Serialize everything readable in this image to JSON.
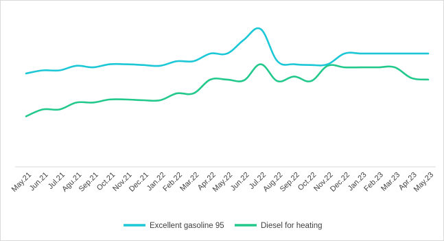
{
  "chart_data": {
    "type": "line",
    "title": "",
    "xlabel": "",
    "ylabel": "",
    "categories": [
      "May.21",
      "Jun.21",
      "Jul.21",
      "Agu.21",
      "Sep.21",
      "Oct.21",
      "Nov.21",
      "Dec.21",
      "Jan.22",
      "Feb.22",
      "Mar.22",
      "Apr.22",
      "May.22",
      "Jun.22",
      "Jul.22",
      "Aug.22",
      "Sep.22",
      "Oct.22",
      "Nov.22",
      "Dec.22",
      "Jan.23",
      "Feb.23",
      "Mar.23",
      "Apr.23",
      "May.23"
    ],
    "ylim": [
      0,
      100
    ],
    "grid": false,
    "legend_position": "bottom",
    "series": [
      {
        "name": "Excellent gasoline 95",
        "color": "#1cc7d6",
        "values": [
          61,
          63,
          63,
          66,
          65,
          67,
          67,
          66.5,
          66,
          69,
          69,
          74,
          74,
          83,
          90,
          69,
          67,
          66.5,
          67,
          74,
          74,
          74,
          74,
          74,
          74
        ]
      },
      {
        "name": "Diesel for heating",
        "color": "#23c98c",
        "values": [
          33,
          37.5,
          37.5,
          42,
          42,
          44,
          44,
          43.5,
          43.5,
          48,
          48,
          57,
          57,
          56.5,
          67,
          56,
          59,
          56,
          66,
          65,
          65,
          65,
          65,
          58,
          57
        ]
      }
    ]
  }
}
